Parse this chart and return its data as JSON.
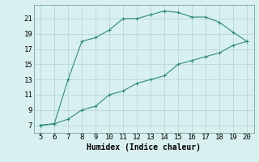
{
  "line1_x": [
    5,
    6,
    7,
    8,
    9,
    10,
    11,
    12,
    13,
    14,
    15,
    16,
    17,
    18,
    19,
    20
  ],
  "line1_y": [
    7,
    7.2,
    13,
    18,
    18.5,
    19.5,
    21,
    21,
    21.5,
    22,
    21.8,
    21.2,
    21.2,
    20.5,
    19.2,
    18
  ],
  "line2_x": [
    5,
    6,
    7,
    8,
    9,
    10,
    11,
    12,
    13,
    14,
    15,
    16,
    17,
    18,
    19,
    20
  ],
  "line2_y": [
    7,
    7.2,
    7.8,
    9,
    9.5,
    11,
    11.5,
    12.5,
    13,
    13.5,
    15,
    15.5,
    16,
    16.5,
    17.5,
    18
  ],
  "line_color": "#2e8b7a",
  "bg_color": "#d8f0f0",
  "grid_color": "#b8d8d8",
  "xlabel": "Humidex (Indice chaleur)",
  "xlabel_fontsize": 7,
  "yticks": [
    7,
    9,
    11,
    13,
    15,
    17,
    19,
    21
  ],
  "xticks": [
    5,
    6,
    7,
    8,
    9,
    10,
    11,
    12,
    13,
    14,
    15,
    16,
    17,
    18,
    19,
    20
  ],
  "xlim": [
    4.5,
    20.5
  ],
  "ylim": [
    6.0,
    22.8
  ]
}
